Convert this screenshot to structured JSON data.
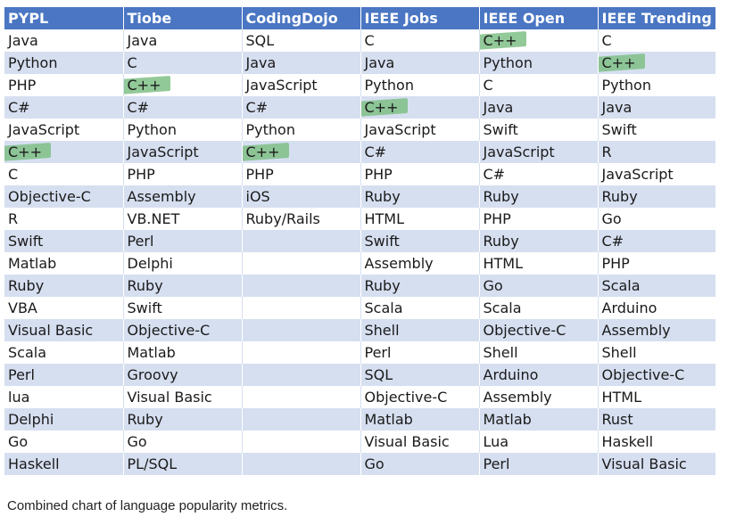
{
  "table": {
    "headers": [
      "PYPL",
      "Tiobe",
      "CodingDojo",
      "IEEE Jobs",
      "IEEE Open",
      "IEEE Trending"
    ],
    "rows": [
      [
        "Java",
        "Java",
        "SQL",
        "C",
        "C++",
        "C"
      ],
      [
        "Python",
        "C",
        "Java",
        "Java",
        "Python",
        "C++"
      ],
      [
        "PHP",
        "C++",
        "JavaScript",
        "Python",
        "C",
        "Python"
      ],
      [
        "C#",
        "C#",
        "C#",
        "C++",
        "Java",
        "Java"
      ],
      [
        "JavaScript",
        "Python",
        "Python",
        "JavaScript",
        "Swift",
        "Swift"
      ],
      [
        "C++",
        "JavaScript",
        "C++",
        "C#",
        "JavaScript",
        "R"
      ],
      [
        "C",
        "PHP",
        "PHP",
        "PHP",
        "C#",
        "JavaScript"
      ],
      [
        "Objective-C",
        "Assembly",
        "iOS",
        "Ruby",
        "Ruby",
        "Ruby"
      ],
      [
        "R",
        "VB.NET",
        "Ruby/Rails",
        "HTML",
        "PHP",
        "Go"
      ],
      [
        "Swift",
        "Perl",
        "",
        "Swift",
        "Ruby",
        "C#"
      ],
      [
        "Matlab",
        "Delphi",
        "",
        "Assembly",
        "HTML",
        "PHP"
      ],
      [
        "Ruby",
        "Ruby",
        "",
        "Ruby",
        "Go",
        "Scala"
      ],
      [
        "VBA",
        "Swift",
        "",
        "Scala",
        "Scala",
        "Arduino"
      ],
      [
        "Visual Basic",
        "Objective-C",
        "",
        "Shell",
        "Objective-C",
        "Assembly"
      ],
      [
        "Scala",
        "Matlab",
        "",
        "Perl",
        "Shell",
        "Shell"
      ],
      [
        "Perl",
        "Groovy",
        "",
        "SQL",
        "Arduino",
        "Objective-C"
      ],
      [
        "lua",
        "Visual Basic",
        "",
        "Objective-C",
        "Assembly",
        "HTML"
      ],
      [
        "Delphi",
        "Ruby",
        "",
        "Matlab",
        "Matlab",
        "Rust"
      ],
      [
        "Go",
        "Go",
        "",
        "Visual Basic",
        "Lua",
        "Haskell"
      ],
      [
        "Haskell",
        "PL/SQL",
        "",
        "Go",
        "Perl",
        "Visual Basic"
      ]
    ],
    "highlight_color": "#7fbf86",
    "header_color": "#4a76c3",
    "stripe_color": "#d6dff0"
  },
  "caption": "Combined chart of language popularity metrics."
}
